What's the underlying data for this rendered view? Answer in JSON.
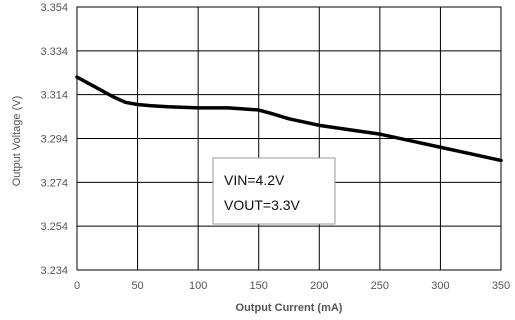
{
  "chart_data": {
    "type": "line",
    "title": "",
    "xlabel": "Output Current (mA)",
    "ylabel": "Output Voltage (V)",
    "xlim": [
      0,
      350
    ],
    "ylim": [
      3.234,
      3.354
    ],
    "xticks": [
      0,
      50,
      100,
      150,
      200,
      250,
      300,
      350
    ],
    "yticks": [
      "3.234",
      "3.254",
      "3.274",
      "3.294",
      "3.314",
      "3.334",
      "3.354"
    ],
    "grid": true,
    "annotation": [
      "VIN=4.2V",
      "VOUT=3.3V"
    ],
    "series": [
      {
        "x": [
          0,
          10,
          20,
          30,
          40,
          50,
          60,
          75,
          100,
          125,
          150,
          160,
          175,
          200,
          225,
          250,
          275,
          300,
          325,
          350
        ],
        "y": [
          3.322,
          3.319,
          3.316,
          3.313,
          3.3105,
          3.3095,
          3.309,
          3.3085,
          3.308,
          3.308,
          3.307,
          3.3055,
          3.303,
          3.3,
          3.298,
          3.296,
          3.293,
          3.29,
          3.287,
          3.284
        ],
        "color": "#000000"
      }
    ]
  }
}
